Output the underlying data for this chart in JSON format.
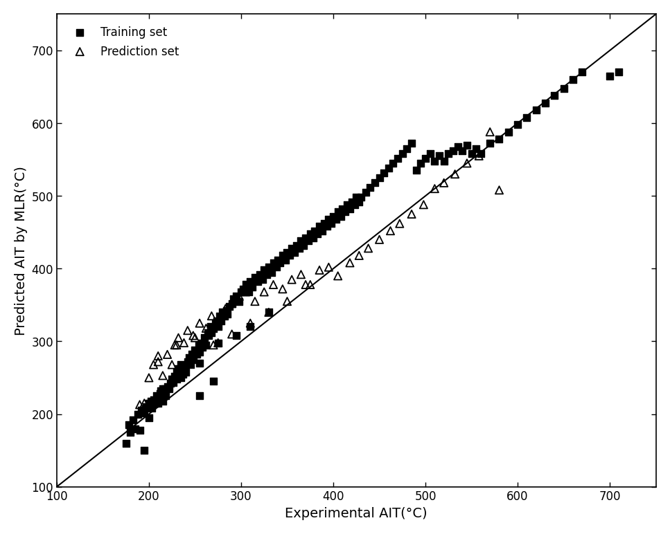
{
  "title": "",
  "xlabel": "Experimental AIT(°C)",
  "ylabel": "Predicted AIT by MLR(°C)",
  "xlim": [
    100,
    750
  ],
  "ylim": [
    100,
    750
  ],
  "xticks": [
    100,
    200,
    300,
    400,
    500,
    600,
    700
  ],
  "yticks": [
    100,
    200,
    300,
    400,
    500,
    600,
    700
  ],
  "diagonal_line": [
    100,
    750
  ],
  "background_color": "#ffffff",
  "legend_labels": [
    "Training set",
    "Prediction set"
  ],
  "training_x": [
    175,
    178,
    180,
    183,
    185,
    188,
    190,
    192,
    195,
    197,
    200,
    200,
    202,
    203,
    205,
    207,
    208,
    210,
    212,
    213,
    215,
    217,
    218,
    220,
    222,
    223,
    225,
    226,
    228,
    230,
    230,
    232,
    235,
    237,
    238,
    240,
    242,
    244,
    245,
    247,
    248,
    250,
    252,
    254,
    255,
    257,
    258,
    260,
    262,
    264,
    265,
    267,
    268,
    270,
    272,
    274,
    275,
    277,
    278,
    280,
    282,
    284,
    285,
    287,
    290,
    292,
    295,
    298,
    300,
    302,
    305,
    308,
    310,
    312,
    315,
    318,
    320,
    323,
    325,
    328,
    330,
    333,
    335,
    338,
    340,
    342,
    345,
    348,
    350,
    353,
    355,
    358,
    360,
    363,
    365,
    368,
    370,
    373,
    375,
    378,
    380,
    383,
    385,
    388,
    390,
    393,
    395,
    398,
    400,
    403,
    405,
    408,
    410,
    413,
    415,
    418,
    420,
    423,
    425,
    428,
    430,
    435,
    440,
    445,
    450,
    455,
    460,
    465,
    470,
    475,
    480,
    485,
    490,
    495,
    500,
    505,
    510,
    515,
    520,
    525,
    530,
    535,
    540,
    545,
    550,
    555,
    560,
    570,
    580,
    590,
    600,
    610,
    620,
    630,
    640,
    650,
    660,
    670,
    700,
    710,
    195,
    215,
    235,
    255,
    275,
    295,
    310,
    330,
    255,
    270
  ],
  "training_y": [
    160,
    185,
    175,
    192,
    180,
    200,
    178,
    205,
    202,
    210,
    215,
    195,
    218,
    208,
    220,
    215,
    225,
    215,
    228,
    232,
    218,
    235,
    225,
    238,
    235,
    242,
    248,
    243,
    252,
    258,
    248,
    262,
    268,
    255,
    263,
    258,
    272,
    278,
    268,
    282,
    275,
    288,
    282,
    295,
    285,
    298,
    292,
    305,
    295,
    312,
    308,
    320,
    312,
    318,
    325,
    328,
    320,
    335,
    328,
    340,
    335,
    342,
    338,
    348,
    352,
    358,
    362,
    355,
    368,
    372,
    378,
    368,
    382,
    375,
    388,
    382,
    392,
    385,
    398,
    392,
    402,
    395,
    408,
    402,
    412,
    408,
    418,
    412,
    422,
    418,
    428,
    422,
    432,
    428,
    438,
    432,
    442,
    438,
    448,
    442,
    452,
    448,
    458,
    452,
    462,
    458,
    468,
    462,
    472,
    468,
    478,
    472,
    482,
    478,
    488,
    482,
    492,
    488,
    498,
    492,
    498,
    505,
    512,
    518,
    525,
    532,
    538,
    545,
    552,
    558,
    565,
    572,
    535,
    545,
    552,
    558,
    548,
    555,
    548,
    558,
    562,
    568,
    562,
    570,
    558,
    565,
    558,
    572,
    578,
    588,
    598,
    608,
    618,
    628,
    638,
    648,
    660,
    670,
    665,
    670,
    150,
    235,
    250,
    270,
    298,
    308,
    320,
    340,
    225,
    245
  ],
  "prediction_x": [
    190,
    195,
    200,
    205,
    210,
    215,
    220,
    225,
    228,
    232,
    238,
    242,
    248,
    255,
    262,
    268,
    275,
    283,
    290,
    298,
    305,
    315,
    325,
    335,
    345,
    355,
    365,
    375,
    385,
    395,
    405,
    418,
    428,
    438,
    450,
    462,
    472,
    485,
    498,
    510,
    520,
    532,
    545,
    558,
    570,
    580,
    210,
    230,
    250,
    270,
    290,
    310,
    330,
    350,
    370
  ],
  "prediction_y": [
    213,
    215,
    250,
    268,
    272,
    253,
    282,
    268,
    295,
    305,
    298,
    315,
    308,
    325,
    318,
    335,
    298,
    345,
    352,
    362,
    368,
    355,
    368,
    378,
    372,
    385,
    392,
    378,
    398,
    402,
    390,
    408,
    418,
    428,
    440,
    452,
    462,
    475,
    488,
    510,
    518,
    530,
    545,
    555,
    588,
    508,
    280,
    295,
    305,
    295,
    310,
    325,
    340,
    355,
    378
  ],
  "marker_size_train": 55,
  "marker_size_pred": 65,
  "line_color": "#000000",
  "train_color": "#000000",
  "pred_color": "#000000",
  "figwidth": 9.675,
  "figheight": 7.725,
  "dpi": 100
}
